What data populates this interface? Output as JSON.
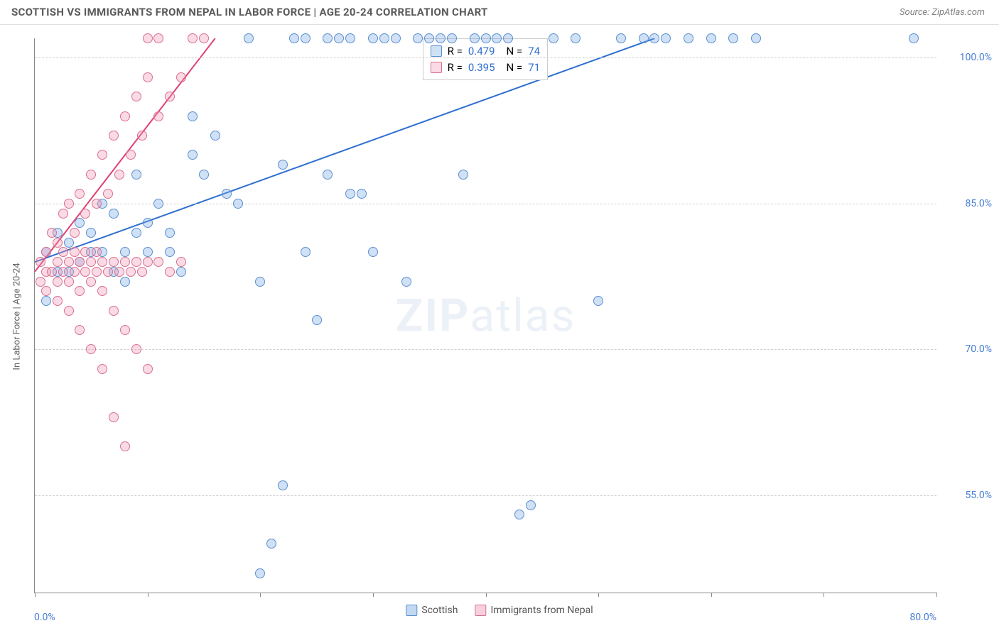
{
  "header": {
    "title": "SCOTTISH VS IMMIGRANTS FROM NEPAL IN LABOR FORCE | AGE 20-24 CORRELATION CHART",
    "source": "Source: ZipAtlas.com"
  },
  "chart": {
    "type": "scatter",
    "ylabel": "In Labor Force | Age 20-24",
    "xlim": [
      0,
      80
    ],
    "ylim": [
      45,
      102
    ],
    "xticks": [
      0,
      10,
      20,
      30,
      40,
      50,
      60,
      70,
      80
    ],
    "yticks": [
      55,
      70,
      85,
      100
    ],
    "ytick_labels": [
      "55.0%",
      "70.0%",
      "85.0%",
      "100.0%"
    ],
    "xaxis_label_left": "0.0%",
    "xaxis_label_right": "80.0%",
    "background_color": "#ffffff",
    "grid_color": "#cfcfcf",
    "axis_color": "#888888",
    "tick_label_color": "#4a7fd6",
    "watermark": "ZIPatlas",
    "point_radius": 7,
    "point_stroke_width": 1.2,
    "series": [
      {
        "name": "Scottish",
        "fill": "rgba(120,170,230,0.35)",
        "stroke": "#5a8fd0",
        "R": "0.479",
        "N": "74",
        "trend": {
          "x1": 0,
          "y1": 79,
          "x2": 55,
          "y2": 102,
          "color": "#2e6fd0",
          "width": 2
        },
        "points": [
          [
            1,
            75
          ],
          [
            1,
            80
          ],
          [
            2,
            78
          ],
          [
            2,
            82
          ],
          [
            3,
            78
          ],
          [
            3,
            81
          ],
          [
            4,
            79
          ],
          [
            4,
            83
          ],
          [
            5,
            82
          ],
          [
            5,
            80
          ],
          [
            6,
            80
          ],
          [
            6,
            85
          ],
          [
            7,
            84
          ],
          [
            7,
            78
          ],
          [
            8,
            80
          ],
          [
            8,
            77
          ],
          [
            9,
            88
          ],
          [
            9,
            82
          ],
          [
            10,
            83
          ],
          [
            10,
            80
          ],
          [
            11,
            85
          ],
          [
            12,
            82
          ],
          [
            12,
            80
          ],
          [
            13,
            78
          ],
          [
            14,
            94
          ],
          [
            14,
            90
          ],
          [
            15,
            88
          ],
          [
            16,
            92
          ],
          [
            17,
            86
          ],
          [
            18,
            85
          ],
          [
            19,
            102
          ],
          [
            20,
            47
          ],
          [
            20,
            77
          ],
          [
            21,
            50
          ],
          [
            22,
            56
          ],
          [
            22,
            89
          ],
          [
            23,
            102
          ],
          [
            24,
            102
          ],
          [
            24,
            80
          ],
          [
            25,
            73
          ],
          [
            26,
            88
          ],
          [
            26,
            102
          ],
          [
            27,
            102
          ],
          [
            28,
            102
          ],
          [
            28,
            86
          ],
          [
            29,
            86
          ],
          [
            30,
            102
          ],
          [
            30,
            80
          ],
          [
            31,
            102
          ],
          [
            32,
            102
          ],
          [
            33,
            77
          ],
          [
            34,
            102
          ],
          [
            35,
            102
          ],
          [
            36,
            102
          ],
          [
            37,
            102
          ],
          [
            38,
            88
          ],
          [
            39,
            102
          ],
          [
            40,
            102
          ],
          [
            41,
            102
          ],
          [
            42,
            102
          ],
          [
            43,
            53
          ],
          [
            44,
            54
          ],
          [
            46,
            102
          ],
          [
            48,
            102
          ],
          [
            50,
            75
          ],
          [
            52,
            102
          ],
          [
            54,
            102
          ],
          [
            55,
            102
          ],
          [
            56,
            102
          ],
          [
            58,
            102
          ],
          [
            60,
            102
          ],
          [
            62,
            102
          ],
          [
            64,
            102
          ],
          [
            78,
            102
          ]
        ]
      },
      {
        "name": "Immigrants from Nepal",
        "fill": "rgba(240,150,180,0.35)",
        "stroke": "#d87090",
        "R": "0.395",
        "N": "71",
        "trend": {
          "x1": 0,
          "y1": 78,
          "x2": 16,
          "y2": 102,
          "color": "#e04070",
          "width": 2
        },
        "points": [
          [
            0.5,
            77
          ],
          [
            0.5,
            79
          ],
          [
            1,
            78
          ],
          [
            1,
            76
          ],
          [
            1,
            80
          ],
          [
            1.5,
            78
          ],
          [
            1.5,
            82
          ],
          [
            2,
            79
          ],
          [
            2,
            77
          ],
          [
            2,
            81
          ],
          [
            2,
            75
          ],
          [
            2.5,
            78
          ],
          [
            2.5,
            84
          ],
          [
            2.5,
            80
          ],
          [
            3,
            79
          ],
          [
            3,
            77
          ],
          [
            3,
            85
          ],
          [
            3,
            74
          ],
          [
            3.5,
            78
          ],
          [
            3.5,
            82
          ],
          [
            3.5,
            80
          ],
          [
            4,
            79
          ],
          [
            4,
            76
          ],
          [
            4,
            86
          ],
          [
            4,
            72
          ],
          [
            4.5,
            78
          ],
          [
            4.5,
            84
          ],
          [
            4.5,
            80
          ],
          [
            5,
            79
          ],
          [
            5,
            77
          ],
          [
            5,
            88
          ],
          [
            5,
            70
          ],
          [
            5.5,
            78
          ],
          [
            5.5,
            85
          ],
          [
            5.5,
            80
          ],
          [
            6,
            79
          ],
          [
            6,
            76
          ],
          [
            6,
            90
          ],
          [
            6,
            68
          ],
          [
            6.5,
            78
          ],
          [
            6.5,
            86
          ],
          [
            7,
            79
          ],
          [
            7,
            74
          ],
          [
            7,
            92
          ],
          [
            7,
            63
          ],
          [
            7.5,
            78
          ],
          [
            7.5,
            88
          ],
          [
            8,
            79
          ],
          [
            8,
            72
          ],
          [
            8,
            94
          ],
          [
            8,
            60
          ],
          [
            8.5,
            78
          ],
          [
            8.5,
            90
          ],
          [
            9,
            79
          ],
          [
            9,
            70
          ],
          [
            9,
            96
          ],
          [
            9.5,
            78
          ],
          [
            9.5,
            92
          ],
          [
            10,
            79
          ],
          [
            10,
            68
          ],
          [
            10,
            98
          ],
          [
            10,
            102
          ],
          [
            11,
            79
          ],
          [
            11,
            94
          ],
          [
            11,
            102
          ],
          [
            12,
            78
          ],
          [
            12,
            96
          ],
          [
            13,
            79
          ],
          [
            13,
            98
          ],
          [
            14,
            102
          ],
          [
            15,
            102
          ]
        ]
      }
    ],
    "bottom_legend": [
      {
        "label": "Scottish",
        "fill": "rgba(120,170,230,0.45)",
        "stroke": "#5a8fd0"
      },
      {
        "label": "Immigrants from Nepal",
        "fill": "rgba(240,150,180,0.45)",
        "stroke": "#d87090"
      }
    ]
  }
}
